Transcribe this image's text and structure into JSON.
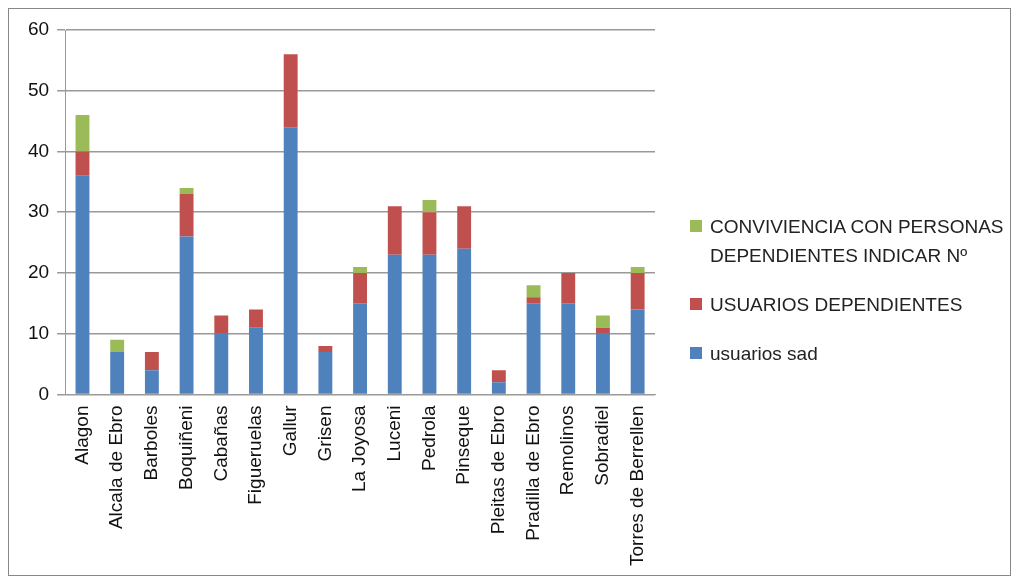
{
  "chart_data": {
    "type": "bar",
    "stacked": true,
    "categories": [
      "Alagon",
      "Alcala de Ebro",
      "Barboles",
      "Boquiñeni",
      "Cabañas",
      "Figueruelas",
      "Gallur",
      "Grisen",
      "La Joyosa",
      "Luceni",
      "Pedrola",
      "Pinseque",
      "Pleitas de Ebro",
      "Pradilla de Ebro",
      "Remolinos",
      "Sobradiel",
      "Torres de Berrellen"
    ],
    "series": [
      {
        "name": "usuarios sad",
        "color": "#4f81bd",
        "values": [
          36,
          7,
          4,
          26,
          10,
          11,
          44,
          7,
          15,
          23,
          23,
          24,
          2,
          15,
          15,
          10,
          14
        ]
      },
      {
        "name": "USUARIOS DEPENDIENTES",
        "color": "#c0504d",
        "values": [
          4,
          0,
          3,
          7,
          3,
          3,
          12,
          1,
          5,
          8,
          7,
          7,
          2,
          1,
          5,
          1,
          6
        ]
      },
      {
        "name": "CONVIVIENCIA CON PERSONAS DEPENDIENTES INDICAR Nº",
        "color": "#9bbb59",
        "values": [
          6,
          2,
          0,
          1,
          0,
          0,
          0,
          0,
          1,
          0,
          2,
          0,
          0,
          2,
          0,
          2,
          1
        ]
      }
    ],
    "ylim": [
      0,
      60
    ],
    "yticks": [
      0,
      10,
      20,
      30,
      40,
      50,
      60
    ],
    "grid": "y",
    "legend": "right"
  }
}
